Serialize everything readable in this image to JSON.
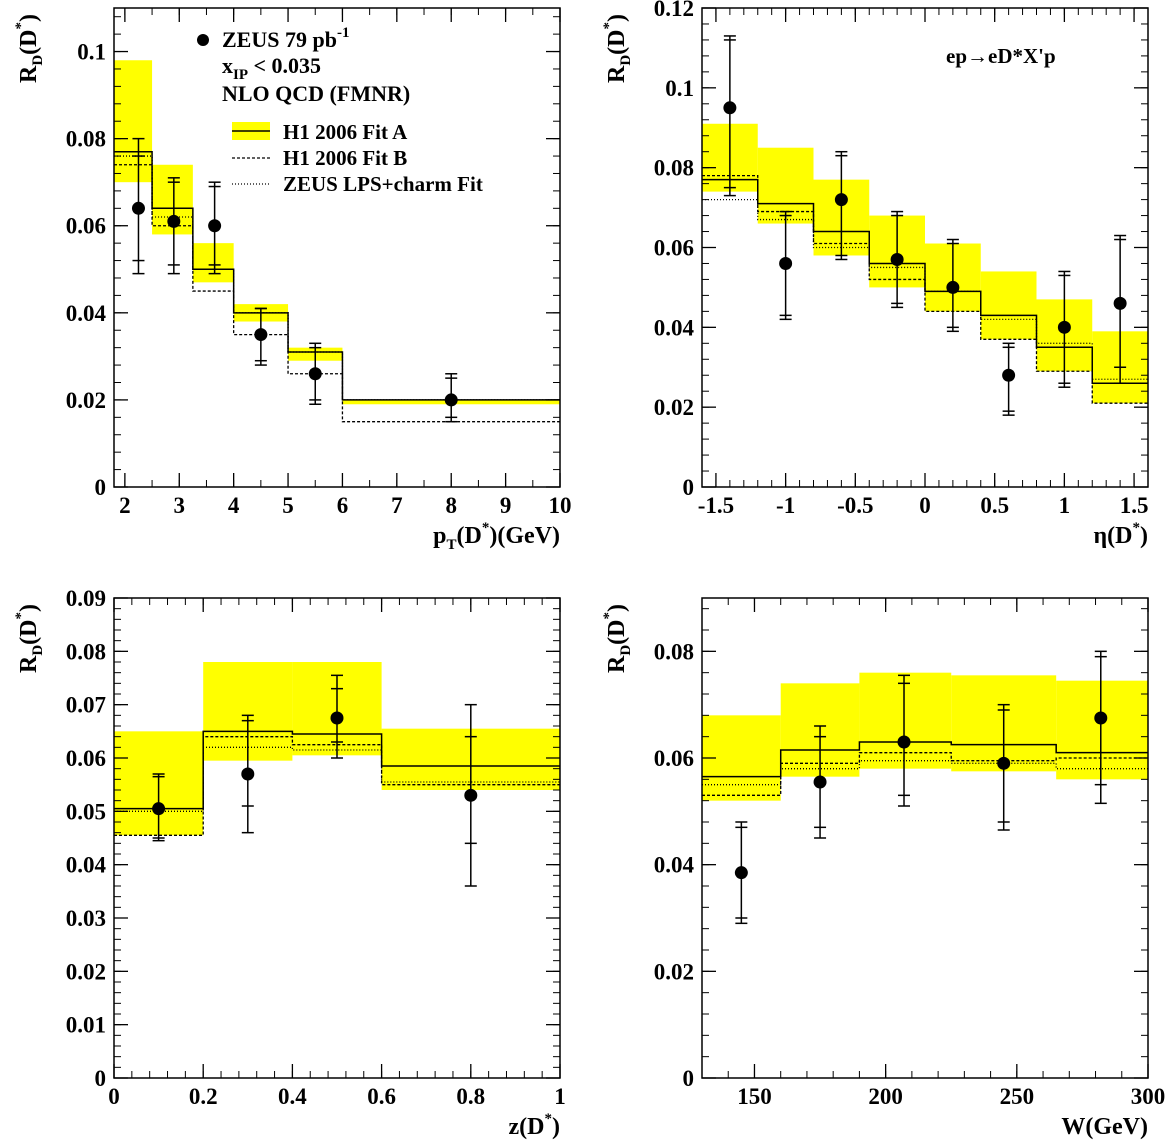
{
  "chart_data": [
    {
      "type": "step-histogram-with-points",
      "xlabel": {
        "main": "p",
        "sub": "T",
        "paren": "(D",
        "sup": "*",
        "unit": ")(GeV)"
      },
      "ylabel": {
        "main": "R",
        "sub": "D",
        "paren": "(D",
        "sup": "*",
        "close": ")"
      },
      "xlim": [
        1.8,
        10
      ],
      "ylim": [
        0,
        0.11
      ],
      "xticks": [
        2,
        3,
        4,
        5,
        6,
        7,
        8,
        9,
        10
      ],
      "xtick_labels": [
        "2",
        "3",
        "4",
        "5",
        "6",
        "7",
        "8",
        "9",
        "10"
      ],
      "yticks": [
        0,
        0.02,
        0.04,
        0.06,
        0.08,
        0.1
      ],
      "ytick_labels": [
        "0",
        "0.02",
        "0.04",
        "0.06",
        "0.08",
        "0.1"
      ],
      "bins": [
        1.8,
        2.5,
        3.25,
        4,
        5,
        6,
        10
      ],
      "band_low": [
        0.07,
        0.058,
        0.047,
        0.038,
        0.029,
        0.019
      ],
      "band_high": [
        0.098,
        0.074,
        0.056,
        0.042,
        0.032,
        0.02
      ],
      "fitA": [
        0.077,
        0.064,
        0.05,
        0.04,
        0.031,
        0.02
      ],
      "fitB": [
        0.074,
        0.06,
        0.045,
        0.035,
        0.026,
        0.015
      ],
      "zeus": [
        0.076,
        0.062,
        0.05,
        0.04,
        0.031,
        0.02
      ],
      "points": [
        {
          "x": 2.25,
          "y": 0.064,
          "stat": [
            0.052,
            0.076
          ],
          "tot": [
            0.049,
            0.08
          ]
        },
        {
          "x": 2.9,
          "y": 0.061,
          "stat": [
            0.051,
            0.07
          ],
          "tot": [
            0.049,
            0.071
          ]
        },
        {
          "x": 3.65,
          "y": 0.06,
          "stat": [
            0.051,
            0.069
          ],
          "tot": [
            0.049,
            0.07
          ]
        },
        {
          "x": 4.5,
          "y": 0.035,
          "stat": [
            0.029,
            0.041
          ],
          "tot": [
            0.028,
            0.041
          ]
        },
        {
          "x": 5.5,
          "y": 0.026,
          "stat": [
            0.02,
            0.032
          ],
          "tot": [
            0.019,
            0.033
          ]
        },
        {
          "x": 8.0,
          "y": 0.02,
          "stat": [
            0.016,
            0.025
          ],
          "tot": [
            0.015,
            0.026
          ]
        }
      ]
    },
    {
      "type": "step-histogram-with-points",
      "annotation": "ep→eD*X'p",
      "xlabel": {
        "main": "η",
        "paren": "(D",
        "sup": "*",
        "close": ")"
      },
      "ylabel": {
        "main": "R",
        "sub": "D",
        "paren": "(D",
        "sup": "*",
        "close": ")"
      },
      "xlim": [
        -1.6,
        1.6
      ],
      "ylim": [
        0,
        0.12
      ],
      "xticks": [
        -1.5,
        -1,
        -0.5,
        0,
        0.5,
        1,
        1.5
      ],
      "xtick_labels": [
        "-1.5",
        "-1",
        "-0.5",
        "0",
        "0.5",
        "1",
        "1.5"
      ],
      "yticks": [
        0,
        0.02,
        0.04,
        0.06,
        0.08,
        0.1,
        0.12
      ],
      "ytick_labels": [
        "0",
        "0.02",
        "0.04",
        "0.06",
        "0.08",
        "0.1",
        "0.12"
      ],
      "bins": [
        -1.6,
        -1.2,
        -0.8,
        -0.4,
        0,
        0.4,
        0.8,
        1.2,
        1.6
      ],
      "band_low": [
        0.074,
        0.066,
        0.058,
        0.05,
        0.044,
        0.037,
        0.029,
        0.021
      ],
      "band_high": [
        0.091,
        0.085,
        0.077,
        0.068,
        0.061,
        0.054,
        0.047,
        0.039
      ],
      "fitA": [
        0.077,
        0.071,
        0.064,
        0.056,
        0.049,
        0.043,
        0.035,
        0.026
      ],
      "fitB": [
        0.078,
        0.069,
        0.061,
        0.052,
        0.044,
        0.037,
        0.029,
        0.021
      ],
      "zeus": [
        0.072,
        0.067,
        0.06,
        0.055,
        0.049,
        0.042,
        0.036,
        0.027
      ],
      "points": [
        {
          "x": -1.4,
          "y": 0.095,
          "stat": [
            0.075,
            0.112
          ],
          "tot": [
            0.073,
            0.113
          ]
        },
        {
          "x": -1.0,
          "y": 0.056,
          "stat": [
            0.043,
            0.068
          ],
          "tot": [
            0.042,
            0.069
          ]
        },
        {
          "x": -0.6,
          "y": 0.072,
          "stat": [
            0.058,
            0.083
          ],
          "tot": [
            0.057,
            0.084
          ]
        },
        {
          "x": -0.2,
          "y": 0.057,
          "stat": [
            0.046,
            0.068
          ],
          "tot": [
            0.045,
            0.069
          ]
        },
        {
          "x": 0.2,
          "y": 0.05,
          "stat": [
            0.04,
            0.061
          ],
          "tot": [
            0.039,
            0.062
          ]
        },
        {
          "x": 0.6,
          "y": 0.028,
          "stat": [
            0.019,
            0.035
          ],
          "tot": [
            0.018,
            0.036
          ]
        },
        {
          "x": 1.0,
          "y": 0.04,
          "stat": [
            0.026,
            0.053
          ],
          "tot": [
            0.025,
            0.054
          ]
        },
        {
          "x": 1.4,
          "y": 0.046,
          "stat": [
            0.03,
            0.062
          ],
          "tot": [
            0.026,
            0.063
          ]
        }
      ]
    },
    {
      "type": "step-histogram-with-points",
      "xlabel": {
        "main": "z",
        "paren": "(D",
        "sup": "*",
        "close": ")"
      },
      "ylabel": {
        "main": "R",
        "sub": "D",
        "paren": "(D",
        "sup": "*",
        "close": ")"
      },
      "xlim": [
        0,
        1
      ],
      "ylim": [
        0,
        0.09
      ],
      "xticks": [
        0,
        0.2,
        0.4,
        0.6,
        0.8,
        1
      ],
      "xtick_labels": [
        "0",
        "0.2",
        "0.4",
        "0.6",
        "0.8",
        "1"
      ],
      "yticks": [
        0,
        0.01,
        0.02,
        0.03,
        0.04,
        0.05,
        0.06,
        0.07,
        0.08,
        0.09
      ],
      "ytick_labels": [
        "0",
        "0.01",
        "0.02",
        "0.03",
        "0.04",
        "0.05",
        "0.06",
        "0.07",
        "0.08",
        "0.09"
      ],
      "bins": [
        0,
        0.2,
        0.4,
        0.6,
        1.0
      ],
      "band_low": [
        0.0455,
        0.0595,
        0.0605,
        0.054
      ],
      "band_high": [
        0.065,
        0.078,
        0.078,
        0.0655
      ],
      "fitA": [
        0.0505,
        0.065,
        0.0645,
        0.0585
      ],
      "fitB": [
        0.0455,
        0.064,
        0.0625,
        0.055
      ],
      "zeus": [
        0.05,
        0.062,
        0.0615,
        0.0555
      ],
      "points": [
        {
          "x": 0.1,
          "y": 0.0505,
          "stat": [
            0.045,
            0.0565
          ],
          "tot": [
            0.0445,
            0.057
          ]
        },
        {
          "x": 0.3,
          "y": 0.057,
          "stat": [
            0.051,
            0.067
          ],
          "tot": [
            0.046,
            0.068
          ]
        },
        {
          "x": 0.5,
          "y": 0.0675,
          "stat": [
            0.063,
            0.073
          ],
          "tot": [
            0.06,
            0.0755
          ]
        },
        {
          "x": 0.8,
          "y": 0.053,
          "stat": [
            0.044,
            0.064
          ],
          "tot": [
            0.036,
            0.07
          ]
        }
      ]
    },
    {
      "type": "step-histogram-with-points",
      "xlabel": {
        "main": "W(GeV)"
      },
      "ylabel": {
        "main": "R",
        "sub": "D",
        "paren": "(D",
        "sup": "*",
        "close": ")"
      },
      "xlim": [
        130,
        300
      ],
      "ylim": [
        0,
        0.09
      ],
      "xticks": [
        150,
        200,
        250,
        300
      ],
      "xtick_labels": [
        "150",
        "200",
        "250",
        "300"
      ],
      "yticks": [
        0,
        0.02,
        0.04,
        0.06,
        0.08
      ],
      "ytick_labels": [
        "0",
        "0.02",
        "0.04",
        "0.06",
        "0.08"
      ],
      "bins": [
        130,
        160,
        190,
        225,
        265,
        300
      ],
      "band_low": [
        0.052,
        0.0565,
        0.058,
        0.0575,
        0.056
      ],
      "band_high": [
        0.068,
        0.074,
        0.076,
        0.0755,
        0.0745
      ],
      "fitA": [
        0.0565,
        0.0615,
        0.063,
        0.0625,
        0.061
      ],
      "fitB": [
        0.053,
        0.059,
        0.061,
        0.0595,
        0.06
      ],
      "zeus": [
        0.055,
        0.058,
        0.0595,
        0.059,
        0.058
      ],
      "points": [
        {
          "x": 145,
          "y": 0.0385,
          "stat": [
            0.03,
            0.047
          ],
          "tot": [
            0.029,
            0.048
          ]
        },
        {
          "x": 175,
          "y": 0.0555,
          "stat": [
            0.047,
            0.064
          ],
          "tot": [
            0.045,
            0.066
          ]
        },
        {
          "x": 207,
          "y": 0.063,
          "stat": [
            0.053,
            0.074
          ],
          "tot": [
            0.051,
            0.0755
          ]
        },
        {
          "x": 245,
          "y": 0.059,
          "stat": [
            0.048,
            0.069
          ],
          "tot": [
            0.0465,
            0.07
          ]
        },
        {
          "x": 282,
          "y": 0.0675,
          "stat": [
            0.055,
            0.079
          ],
          "tot": [
            0.0515,
            0.08
          ]
        }
      ]
    }
  ],
  "legend": {
    "data_label": "ZEUS  79 pb",
    "data_sup": "-1",
    "cut_main": "x",
    "cut_sub": "IP",
    "cut_rest": " < 0.035",
    "theory": "NLO QCD (FMNR)",
    "fitA": "H1 2006 Fit A",
    "fitB": "H1 2006 Fit B",
    "zeus_fit": "ZEUS LPS+charm Fit"
  },
  "colors": {
    "band": "#ffff00",
    "line": "#000000"
  }
}
